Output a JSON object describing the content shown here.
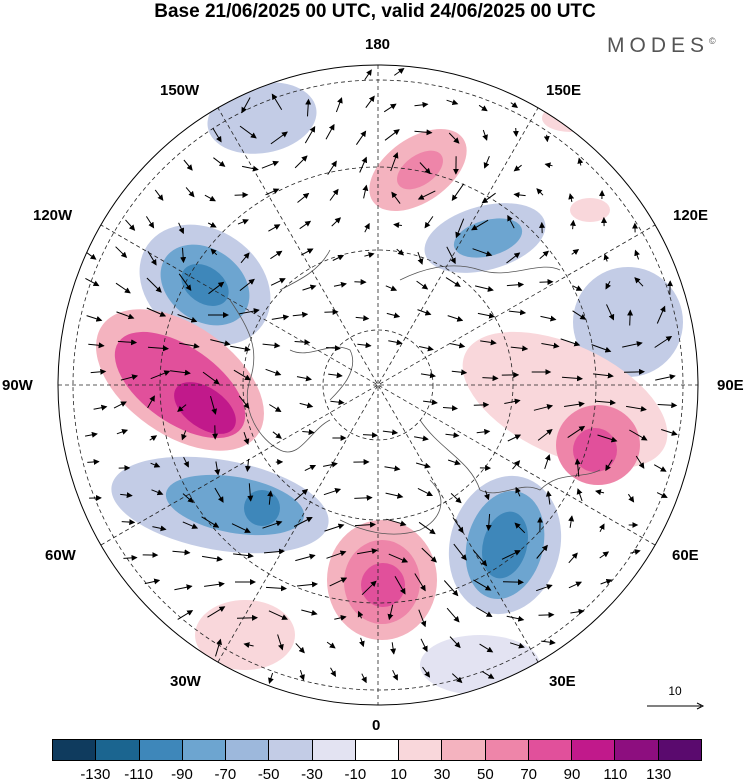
{
  "header": {
    "title": "Base 21/06/2025 00 UTC, valid 24/06/2025 00 UTC",
    "brand": "MODES",
    "brand_mark": "©"
  },
  "map": {
    "projection": "north-polar-stereographic",
    "longitude_labels": {
      "top": "180",
      "top_left": "150W",
      "top_right": "150E",
      "upper_left": "120W",
      "upper_right": "120E",
      "left": "90W",
      "right": "90E",
      "lower_left": "60W",
      "lower_right": "60E",
      "bottom_left": "30W",
      "bottom_right": "30E",
      "bottom": "0"
    },
    "reference_vector": {
      "label": "10"
    }
  },
  "legend": {
    "colors": [
      "#0f3b5e",
      "#1b6590",
      "#3e87ba",
      "#6da5d0",
      "#9db8dc",
      "#c3cce6",
      "#e3e3f2",
      "#ffffff",
      "#f9d7db",
      "#f4b3bf",
      "#ee85a9",
      "#e1509b",
      "#c1198b",
      "#8d0e7f",
      "#5a0a6e"
    ],
    "ticks": [
      "-130",
      "-110",
      "-90",
      "-70",
      "-50",
      "-30",
      "-10",
      "10",
      "30",
      "50",
      "70",
      "90",
      "110",
      "130"
    ]
  }
}
